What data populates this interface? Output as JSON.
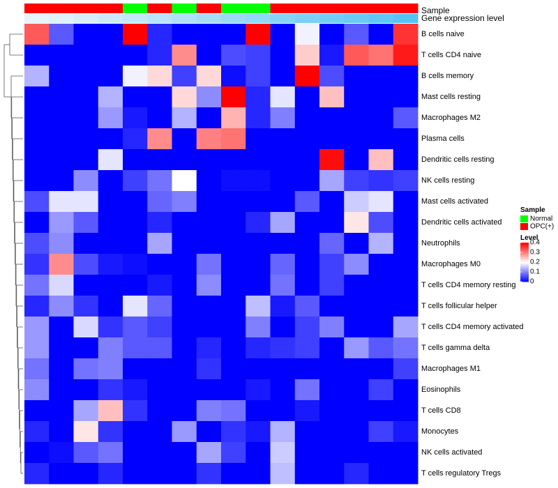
{
  "chart_data": {
    "type": "heatmap",
    "title": "",
    "annotation_tracks": [
      "Sample",
      "Gene expression level"
    ],
    "sample_groups": [
      "OPC(+)",
      "OPC(+)",
      "OPC(+)",
      "OPC(+)",
      "Normal",
      "OPC(+)",
      "Normal",
      "OPC(+)",
      "Normal",
      "Normal",
      "OPC(+)",
      "OPC(+)",
      "OPC(+)",
      "OPC(+)",
      "OPC(+)",
      "OPC(+)"
    ],
    "expression_level": [
      0.0,
      0.02,
      0.05,
      0.08,
      0.11,
      0.14,
      0.17,
      0.2,
      0.23,
      0.26,
      0.29,
      0.32,
      0.35,
      0.38,
      0.41,
      0.44
    ],
    "rows": [
      "B cells naive",
      "T cells CD4 naive",
      "B cells memory",
      "Mast cells resting",
      "Macrophages M2",
      "Plasma cells",
      "Dendritic cells resting",
      "NK cells resting",
      "Mast cells activated",
      "Dendritic cells activated",
      "Neutrophils",
      "Macrophages M0",
      "T cells CD4 memory resting",
      "T cells follicular helper",
      "T cells CD4 memory activated",
      "T cells gamma delta",
      "Macrophages M1",
      "Eosinophils",
      "T cells CD8",
      "Monocytes",
      "NK cells activated",
      "T cells regulatory  Tregs"
    ],
    "values": [
      [
        0.33,
        0.07,
        0,
        0,
        0.4,
        0.03,
        0,
        0,
        0,
        0.4,
        0,
        0.19,
        0,
        0.07,
        0,
        0.36
      ],
      [
        0,
        0,
        0,
        0,
        0,
        0.03,
        0.29,
        0,
        0.06,
        0.05,
        0,
        0.24,
        0.02,
        0.33,
        0.31,
        0.38
      ],
      [
        0.14,
        0,
        0,
        0,
        0.19,
        0.23,
        0.05,
        0.23,
        0.01,
        0.05,
        0,
        0.4,
        0.06,
        0,
        0,
        0
      ],
      [
        0,
        0,
        0,
        0.14,
        0,
        0,
        0.23,
        0.11,
        0.4,
        0.03,
        0.18,
        0,
        0.25,
        0,
        0,
        0
      ],
      [
        0,
        0,
        0,
        0.12,
        0.02,
        0,
        0.14,
        0,
        0.26,
        0.03,
        0.1,
        0,
        0,
        0,
        0,
        0.07
      ],
      [
        0,
        0,
        0,
        0,
        0.03,
        0.29,
        0,
        0.3,
        0.31,
        0,
        0,
        0,
        0,
        0,
        0,
        0
      ],
      [
        0,
        0,
        0,
        0.18,
        0,
        0,
        0,
        0,
        0,
        0,
        0,
        0,
        0.39,
        0,
        0.25,
        0
      ],
      [
        0,
        0,
        0.11,
        0,
        0.05,
        0.09,
        0.2,
        0,
        0.01,
        0.01,
        0,
        0,
        0.13,
        0.05,
        0.04,
        0.05
      ],
      [
        0.06,
        0.18,
        0.18,
        0,
        0,
        0.08,
        0.1,
        0,
        0,
        0,
        0,
        0.07,
        0,
        0.16,
        0.18,
        0
      ],
      [
        0,
        0.12,
        0.07,
        0,
        0,
        0.03,
        0,
        0,
        0,
        0.03,
        0.13,
        0,
        0,
        0.22,
        0.06,
        0
      ],
      [
        0.06,
        0.11,
        0,
        0,
        0,
        0.13,
        0,
        0,
        0,
        0,
        0,
        0,
        0.08,
        0,
        0.14,
        0
      ],
      [
        0.04,
        0.29,
        0.06,
        0.02,
        0.01,
        0,
        0,
        0.09,
        0,
        0,
        0.08,
        0,
        0.05,
        0.11,
        0,
        0
      ],
      [
        0.09,
        0.17,
        0,
        0,
        0,
        0.02,
        0,
        0.11,
        0,
        0,
        0.09,
        0,
        0.05,
        0,
        0,
        0
      ],
      [
        0.03,
        0.11,
        0.04,
        0,
        0.18,
        0.08,
        0,
        0,
        0,
        0.15,
        0.02,
        0.07,
        0,
        0,
        0,
        0
      ],
      [
        0.12,
        0,
        0.17,
        0.04,
        0.07,
        0.05,
        0,
        0,
        0,
        0.1,
        0,
        0.05,
        0.1,
        0,
        0,
        0.13
      ],
      [
        0.12,
        0,
        0,
        0.1,
        0.07,
        0.07,
        0,
        0.03,
        0,
        0.03,
        0.04,
        0.05,
        0,
        0.12,
        0.07,
        0.09
      ],
      [
        0.09,
        0,
        0.09,
        0.1,
        0,
        0,
        0,
        0.04,
        0,
        0,
        0,
        0,
        0,
        0,
        0,
        0.05
      ],
      [
        0.11,
        0,
        0,
        0.04,
        0.02,
        0,
        0,
        0,
        0,
        0.02,
        0,
        0.09,
        0,
        0,
        0.05,
        0
      ],
      [
        0,
        0,
        0.13,
        0.25,
        0.04,
        0,
        0,
        0.1,
        0.09,
        0,
        0,
        0.02,
        0,
        0,
        0,
        0
      ],
      [
        0.03,
        0,
        0.22,
        0.04,
        0,
        0,
        0.12,
        0,
        0.04,
        0.02,
        0.14,
        0,
        0,
        0,
        0.05,
        0.02
      ],
      [
        0,
        0.01,
        0.07,
        0.09,
        0,
        0,
        0,
        0.13,
        0.05,
        0,
        0.16,
        0,
        0,
        0,
        0,
        0
      ],
      [
        0.03,
        0,
        0,
        0.03,
        0,
        0,
        0,
        0.04,
        0,
        0,
        0.15,
        0,
        0,
        0.03,
        0,
        0
      ]
    ],
    "color_scale": {
      "min": 0,
      "max": 0.4,
      "low_color": "#0000ff",
      "mid_color": "#ffffff",
      "high_color": "#ff0000",
      "mid_value": 0.2
    },
    "legend": {
      "sample_title": "Sample",
      "sample_items": [
        {
          "label": "Normal",
          "color": "#00ff00"
        },
        {
          "label": "OPC(+)",
          "color": "#ff0000"
        }
      ],
      "level_title": "Level",
      "level_ticks": [
        "0.4",
        "0.3",
        "0.2",
        "0.1",
        "0"
      ],
      "level_tick_values": [
        0.4,
        0.3,
        0.2,
        0.1,
        0
      ]
    },
    "group_colors": {
      "Normal": "#00ff00",
      "OPC(+)": "#ff0000"
    },
    "expression_colors": {
      "low": "#e6f3fb",
      "high": "#56c3f2"
    },
    "dendrogram": "row",
    "grid": false,
    "legend_position": "right"
  }
}
